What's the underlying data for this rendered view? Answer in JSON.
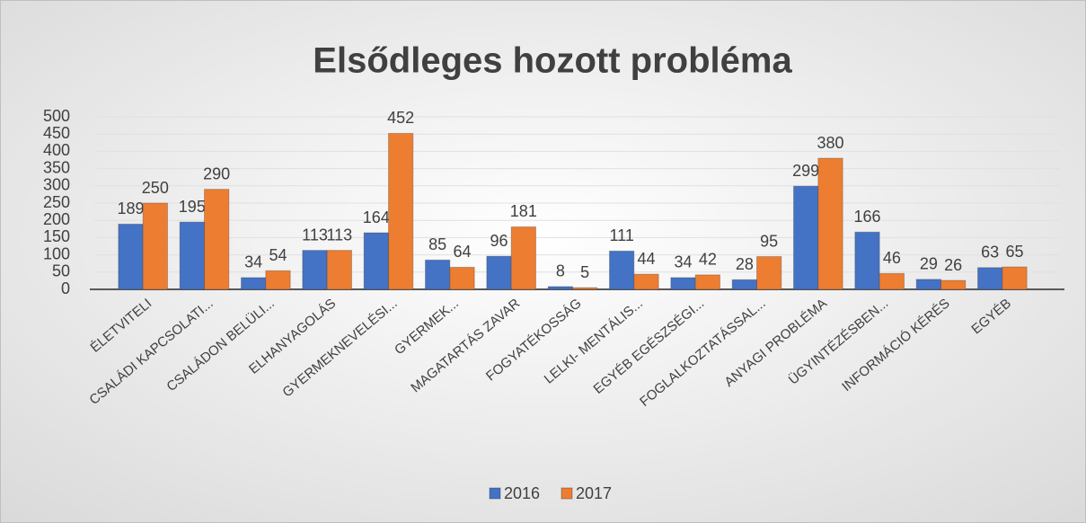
{
  "chart_data": {
    "type": "bar",
    "title": "Elsődleges hozott probléma",
    "categories": [
      "ÉLETVITELI",
      "CSALÁDI KAPCSOLATI...",
      "CSALÁDON BELÜLI...",
      "ELHANYAGOLÁS",
      "GYERMEKNEVELÉSI...",
      "GYERMEK...",
      "MAGATARTÁS ZAVAR",
      "FOGYATÉKOSSÁG",
      "LELKI- MENTÁLIS...",
      "EGYÉB EGÉSZSÉGI...",
      "FOGLALKOZTATÁSSAL...",
      "ANYAGI PROBLÉMA",
      "ÜGYINTÉZÉSBEN...",
      "INFORMÁCIÓ KÉRÉS",
      "EGYÉB"
    ],
    "series": [
      {
        "name": "2016",
        "color": "#4472c4",
        "values": [
          189,
          195,
          34,
          113,
          164,
          85,
          96,
          8,
          111,
          34,
          28,
          299,
          166,
          29,
          63
        ]
      },
      {
        "name": "2017",
        "color": "#ed7d31",
        "values": [
          250,
          290,
          54,
          113,
          452,
          64,
          181,
          5,
          44,
          42,
          95,
          380,
          46,
          26,
          65
        ]
      }
    ],
    "ylim": [
      0,
      500
    ],
    "yticks": [
      0,
      50,
      100,
      150,
      200,
      250,
      300,
      350,
      400,
      450,
      500
    ],
    "grid": true,
    "legend": "bottom"
  }
}
